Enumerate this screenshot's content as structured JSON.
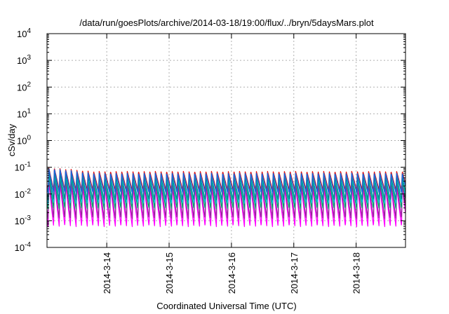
{
  "chart_data": {
    "type": "line",
    "title": "/data/run/goesPlots/archive/2014-03-18/19:00/flux/../bryn/5daysMars.plot",
    "xlabel": "Coordinated Universal Time (UTC)",
    "ylabel": "cSv/day",
    "y_scale": "log",
    "ylim": [
      0.0001,
      10000
    ],
    "y_ticks": [
      {
        "base": "10",
        "exp": "-4"
      },
      {
        "base": "10",
        "exp": "-3"
      },
      {
        "base": "10",
        "exp": "-2"
      },
      {
        "base": "10",
        "exp": "-1"
      },
      {
        "base": "10",
        "exp": "0"
      },
      {
        "base": "10",
        "exp": "1"
      },
      {
        "base": "10",
        "exp": "2"
      },
      {
        "base": "10",
        "exp": "3"
      },
      {
        "base": "10",
        "exp": "4"
      }
    ],
    "xlim": [
      "2014-03-13T01:00",
      "2014-03-18T19:00"
    ],
    "x_ticks": [
      "2014-3-14",
      "2014-3-15",
      "2014-3-16",
      "2014-3-17",
      "2014-3-18"
    ],
    "grid": true,
    "legend": "none",
    "pattern": {
      "period_hours": 2.16,
      "start_hours": 0.4,
      "description": "periodic sawtooth: sharp rise to peak, gradual decay to trough"
    },
    "series": [
      {
        "color": "#ff00ff",
        "peak": 0.018,
        "trough": 0.0006,
        "early_peak": 0.03
      },
      {
        "color": "#9b1fa0",
        "peak": 0.025,
        "trough": 0.0012,
        "early_peak": 0.04
      },
      {
        "color": "#00a06a",
        "peak": 0.035,
        "trough": 0.0028,
        "early_peak": 0.055
      },
      {
        "color": "#00c8e0",
        "peak": 0.04,
        "trough": 0.0045,
        "early_peak": 0.065
      },
      {
        "color": "#008b8b",
        "peak": 0.045,
        "trough": 0.006,
        "early_peak": 0.075
      },
      {
        "color": "#e01010",
        "peak": 0.07,
        "trough": 0.014,
        "early_peak": 0.1
      },
      {
        "color": "#1565e0",
        "peak": 0.06,
        "trough": 0.011,
        "early_peak": 0.095
      }
    ]
  }
}
